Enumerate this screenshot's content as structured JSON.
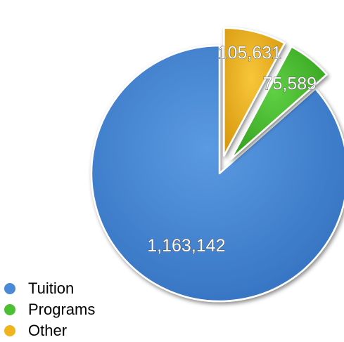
{
  "chart_data": {
    "type": "pie",
    "categories": [
      "Tuition",
      "Programs",
      "Other"
    ],
    "values": [
      1163142,
      75589,
      105631
    ],
    "data_labels": [
      "1,163,142",
      "75,589",
      "105,631"
    ],
    "colors": [
      "#4a8ad6",
      "#4cbf32",
      "#f0b41c"
    ],
    "exploded": [
      "Programs",
      "Other"
    ],
    "legend_position": "bottom-left"
  }
}
